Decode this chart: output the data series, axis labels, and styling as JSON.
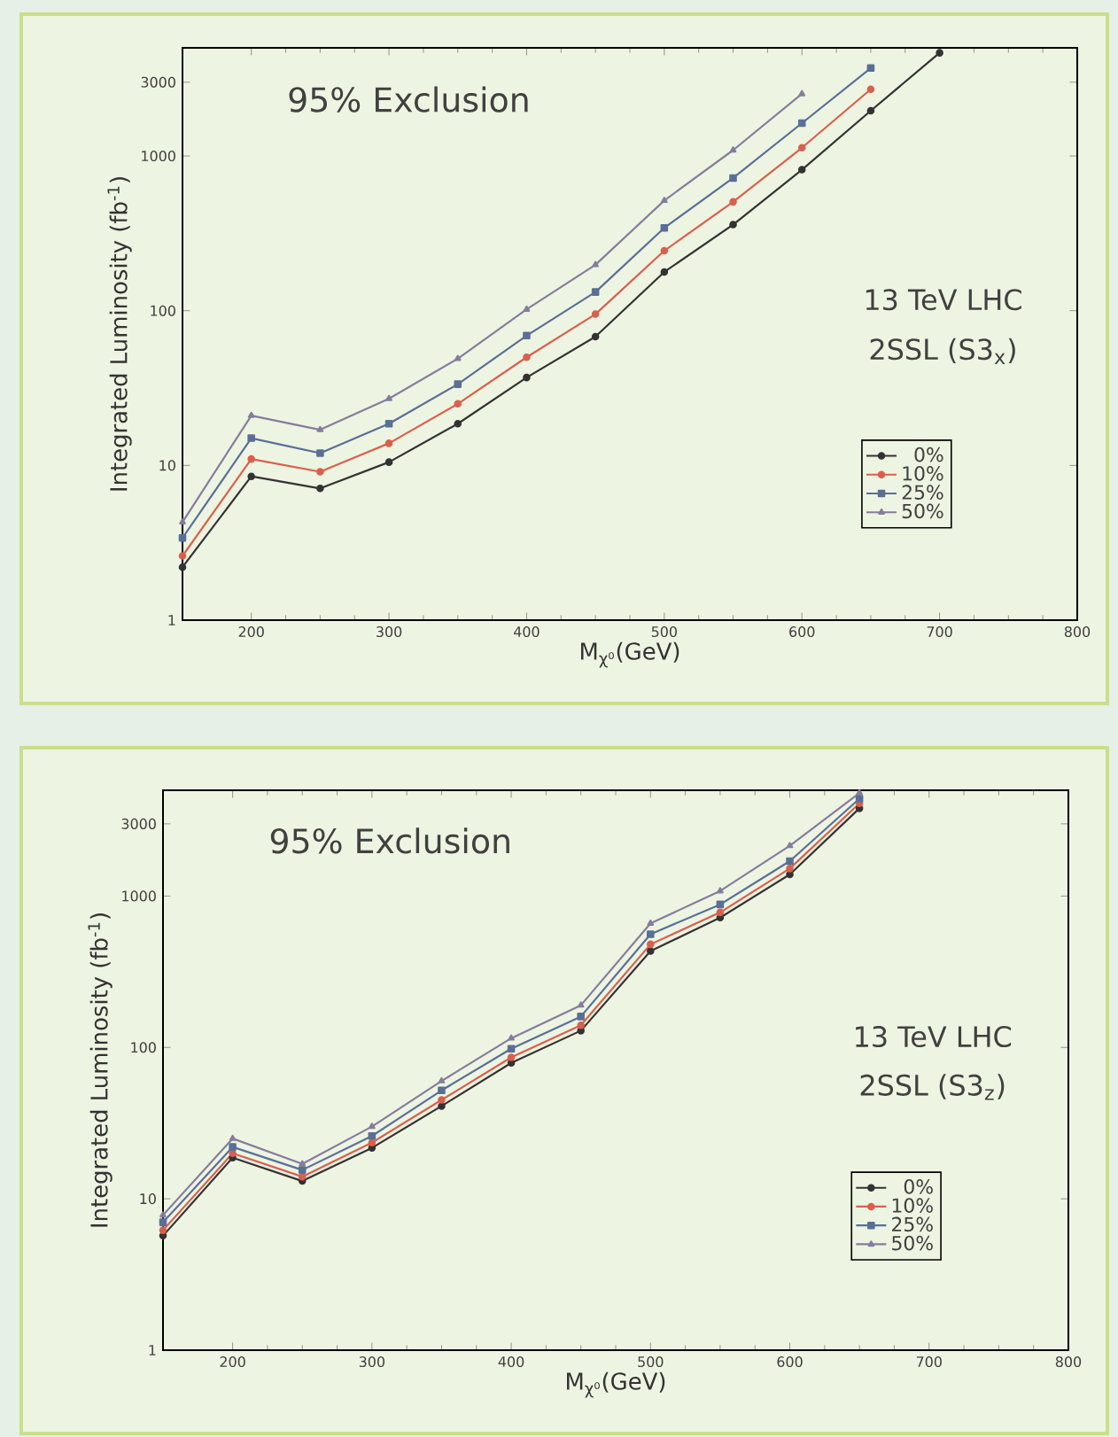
{
  "chart_data": [
    {
      "type": "line",
      "xlabel": "M$_{χ⁰}$(GeV)",
      "ylabel": "Integrated Luminosity (fb$^{-1}$)",
      "annotations": [
        "95% Exclusion",
        "13 TeV LHC",
        "2SSL (S3$_{x}$)"
      ],
      "x": [
        150,
        200,
        250,
        300,
        350,
        400,
        450,
        500,
        550,
        600,
        650,
        700
      ],
      "series": [
        {
          "name": "0%",
          "color": "#333333",
          "marker": "circle",
          "values": [
            2.2,
            8.5,
            7.1,
            10.5,
            18.6,
            37,
            68,
            178,
            360,
            815,
            1960,
            4640
          ]
        },
        {
          "name": "10%",
          "color": "#d9604c",
          "marker": "circle",
          "values": [
            2.6,
            11,
            9.1,
            13.9,
            25,
            50,
            95,
            244,
            505,
            1130,
            2700,
            null
          ]
        },
        {
          "name": "25%",
          "color": "#5a6f96",
          "marker": "square",
          "values": [
            3.4,
            15,
            12,
            18.6,
            33.5,
            69,
            132,
            343,
            720,
            1630,
            3700,
            null
          ]
        },
        {
          "name": "50%",
          "color": "#857d9c",
          "marker": "triangle",
          "values": [
            4.3,
            21,
            17,
            27,
            49,
            102,
            198,
            515,
            1090,
            2520,
            null,
            null
          ]
        }
      ],
      "xlim": [
        150,
        800
      ],
      "ylim": [
        1,
        5000
      ],
      "xticks": [
        200,
        300,
        400,
        500,
        600,
        700,
        800
      ],
      "yticks": [
        1,
        10,
        100,
        1000,
        3000
      ],
      "log": "y",
      "legend": "right"
    },
    {
      "type": "line",
      "xlabel": "M$_{χ⁰}$(GeV)",
      "ylabel": "Integrated Luminosity (fb$^{-1}$)",
      "annotations": [
        "95% Exclusion",
        "13 TeV LHC",
        "2SSL (S3$_{z}$)"
      ],
      "x": [
        150,
        200,
        250,
        300,
        350,
        400,
        450,
        500,
        550,
        600,
        650
      ],
      "series": [
        {
          "name": "0%",
          "color": "#333333",
          "marker": "circle",
          "values": [
            5.7,
            18.7,
            13.1,
            21.7,
            41,
            79,
            129,
            433,
            720,
            1390,
            3800
          ]
        },
        {
          "name": "10%",
          "color": "#d9604c",
          "marker": "circle",
          "values": [
            6.2,
            20,
            14,
            23.5,
            45,
            86,
            140,
            480,
            780,
            1520,
            4100
          ]
        },
        {
          "name": "25%",
          "color": "#5a6f96",
          "marker": "square",
          "values": [
            7,
            22,
            15.5,
            26,
            52,
            98,
            160,
            560,
            880,
            1700,
            4400
          ]
        },
        {
          "name": "50%",
          "color": "#857d9c",
          "marker": "triangle",
          "values": [
            7.8,
            25,
            17,
            30,
            60,
            115,
            190,
            660,
            1080,
            2150,
            4800
          ]
        }
      ],
      "xlim": [
        150,
        800
      ],
      "ylim": [
        1,
        5000
      ],
      "xticks": [
        200,
        300,
        400,
        500,
        600,
        700,
        800
      ],
      "yticks": [
        1,
        10,
        100,
        1000,
        3000
      ],
      "log": "y",
      "legend": "right"
    }
  ]
}
